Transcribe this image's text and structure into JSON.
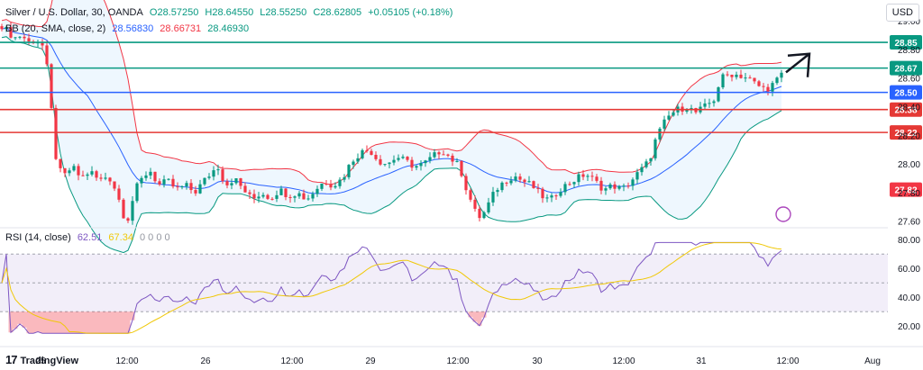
{
  "header": {
    "symbol": "Silver / U.S. Dollar, 30, OANDA",
    "open": "O28.57250",
    "high": "H28.64550",
    "low": "L28.55250",
    "close": "C28.62805",
    "change": "+0.05105 (+0.18%)"
  },
  "indicators": {
    "bb_label": "BB (20, SMA, close, 2)",
    "bb_basis": "28.56830",
    "bb_upper": "28.66731",
    "bb_lower": "28.46930",
    "rsi_label": "RSI (14, close)",
    "rsi_value": "62.51",
    "rsi_ma": "67.34",
    "rsi_zeros": "0 0 0 0"
  },
  "currency": "USD",
  "footer": {
    "brand": "TradingView"
  },
  "colors": {
    "up": "#089981",
    "down": "#f23645",
    "bb_basis": "#2962ff",
    "bb_upper": "#f23645",
    "bb_lower": "#089981",
    "bb_fill": "#e3f2fd",
    "green_level": "#089981",
    "blue_level": "#2962ff",
    "red_level": "#e53935",
    "rsi": "#7e57c2",
    "rsi_ma": "#f0c808",
    "rsi_band": "#ede7f6"
  },
  "chart_data": {
    "type": "candlestick",
    "y_ticks": [
      "27.60",
      "27.80",
      "28.00",
      "28.20",
      "28.40",
      "28.60",
      "28.80",
      "29.00"
    ],
    "ylim": [
      27.56,
      29.02
    ],
    "x_ticks": [
      "25",
      "12:00",
      "26",
      "12:00",
      "29",
      "12:00",
      "30",
      "12:00",
      "31",
      "12:00",
      "Aug"
    ],
    "levels": [
      {
        "value": 28.85,
        "label": "28.85",
        "color": "#089981"
      },
      {
        "value": 28.67,
        "label": "28.67",
        "color": "#089981"
      },
      {
        "value": 28.5,
        "label": "28.50",
        "color": "#2962ff"
      },
      {
        "value": 28.38,
        "label": "28.38",
        "color": "#e53935"
      },
      {
        "value": 28.22,
        "label": "28.22",
        "color": "#e53935"
      },
      {
        "value": 27.82,
        "label": "27.82",
        "color": "#f23645"
      }
    ],
    "price_path": [
      [
        0,
        28.98
      ],
      [
        8,
        28.93
      ],
      [
        16,
        28.88
      ],
      [
        24,
        28.9
      ],
      [
        32,
        28.85
      ],
      [
        40,
        28.87
      ],
      [
        48,
        28.82
      ],
      [
        54,
        28.6
      ],
      [
        58,
        28.3
      ],
      [
        62,
        28.05
      ],
      [
        66,
        27.95
      ],
      [
        72,
        27.92
      ],
      [
        80,
        27.98
      ],
      [
        90,
        27.9
      ],
      [
        100,
        27.95
      ],
      [
        110,
        27.88
      ],
      [
        120,
        27.92
      ],
      [
        130,
        27.8
      ],
      [
        136,
        27.65
      ],
      [
        142,
        27.62
      ],
      [
        150,
        27.82
      ],
      [
        158,
        27.9
      ],
      [
        166,
        27.96
      ],
      [
        176,
        27.85
      ],
      [
        186,
        27.88
      ],
      [
        196,
        27.82
      ],
      [
        206,
        27.85
      ],
      [
        216,
        27.8
      ],
      [
        226,
        27.88
      ],
      [
        236,
        27.95
      ],
      [
        242,
        27.98
      ],
      [
        250,
        27.85
      ],
      [
        260,
        27.9
      ],
      [
        270,
        27.82
      ],
      [
        280,
        27.75
      ],
      [
        290,
        27.8
      ],
      [
        300,
        27.76
      ],
      [
        310,
        27.82
      ],
      [
        320,
        27.78
      ],
      [
        330,
        27.8
      ],
      [
        340,
        27.75
      ],
      [
        350,
        27.82
      ],
      [
        360,
        27.88
      ],
      [
        370,
        27.85
      ],
      [
        380,
        27.9
      ],
      [
        390,
        28.02
      ],
      [
        400,
        28.08
      ],
      [
        410,
        28.1
      ],
      [
        420,
        28.02
      ],
      [
        430,
        28.0
      ],
      [
        440,
        28.05
      ],
      [
        450,
        28.02
      ],
      [
        460,
        27.98
      ],
      [
        470,
        28.0
      ],
      [
        480,
        28.05
      ],
      [
        490,
        28.1
      ],
      [
        500,
        28.04
      ],
      [
        510,
        27.98
      ],
      [
        516,
        27.85
      ],
      [
        522,
        27.75
      ],
      [
        528,
        27.65
      ],
      [
        534,
        27.62
      ],
      [
        542,
        27.72
      ],
      [
        550,
        27.82
      ],
      [
        560,
        27.88
      ],
      [
        570,
        27.92
      ],
      [
        580,
        27.88
      ],
      [
        590,
        27.85
      ],
      [
        600,
        27.78
      ],
      [
        610,
        27.74
      ],
      [
        620,
        27.82
      ],
      [
        630,
        27.86
      ],
      [
        640,
        27.9
      ],
      [
        650,
        27.93
      ],
      [
        660,
        27.88
      ],
      [
        670,
        27.82
      ],
      [
        680,
        27.85
      ],
      [
        690,
        27.82
      ],
      [
        700,
        27.88
      ],
      [
        710,
        27.95
      ],
      [
        720,
        28.02
      ],
      [
        728,
        28.18
      ],
      [
        736,
        28.28
      ],
      [
        744,
        28.35
      ],
      [
        752,
        28.38
      ],
      [
        762,
        28.4
      ],
      [
        772,
        28.36
      ],
      [
        782,
        28.4
      ],
      [
        792,
        28.45
      ],
      [
        800,
        28.6
      ],
      [
        810,
        28.63
      ],
      [
        820,
        28.62
      ],
      [
        830,
        28.6
      ],
      [
        840,
        28.55
      ],
      [
        850,
        28.52
      ],
      [
        860,
        28.57
      ],
      [
        868,
        28.63
      ]
    ],
    "arrow": {
      "from": [
        872,
        28.64
      ],
      "to": [
        898,
        28.77
      ],
      "style": "trend-up-arrow"
    }
  }
}
